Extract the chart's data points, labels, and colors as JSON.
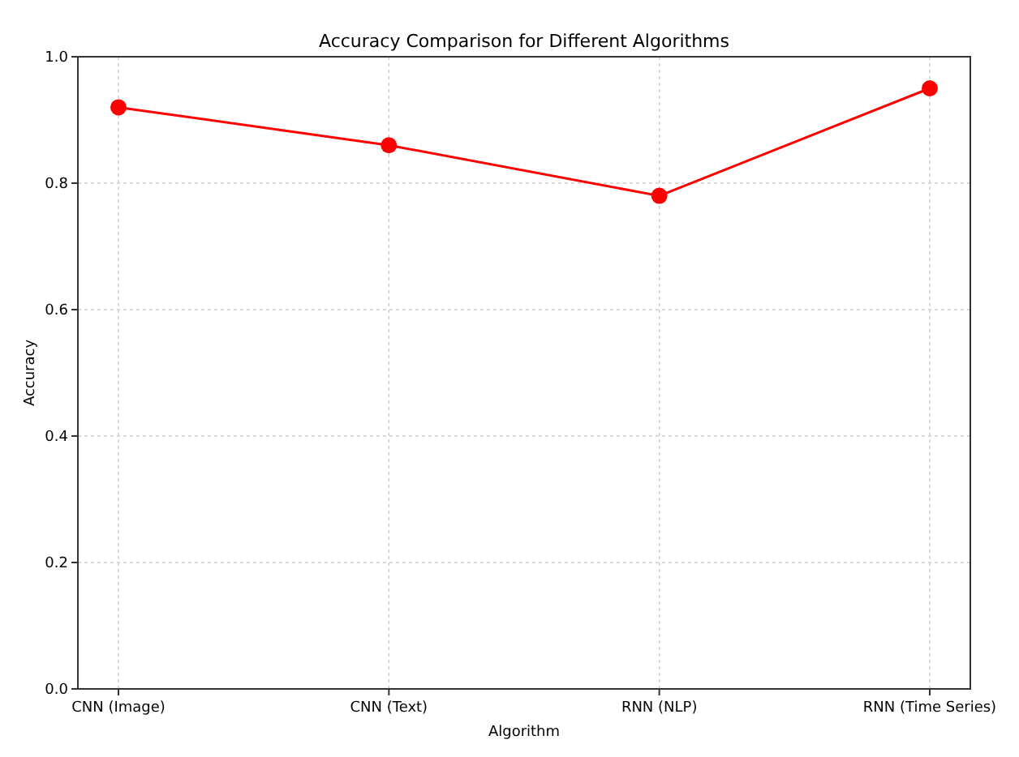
{
  "chart_data": {
    "type": "line",
    "title": "Accuracy Comparison for Different Algorithms",
    "xlabel": "Algorithm",
    "ylabel": "Accuracy",
    "categories": [
      "CNN (Image)",
      "CNN (Text)",
      "RNN (NLP)",
      "RNN (Time Series)"
    ],
    "series": [
      {
        "color": "#ff0000",
        "values": [
          0.92,
          0.86,
          0.78,
          0.95
        ]
      }
    ],
    "ylim": [
      0,
      1
    ],
    "yticks": [
      {
        "value": 0,
        "label": "0.0"
      },
      {
        "value": 0.2,
        "label": "0.2"
      },
      {
        "value": 0.4,
        "label": "0.4"
      },
      {
        "value": 0.6,
        "label": "0.6"
      },
      {
        "value": 0.8,
        "label": "0.8"
      },
      {
        "value": 1,
        "label": "1.0"
      }
    ],
    "grid": true,
    "marker": "circle",
    "line_style": "solid"
  }
}
